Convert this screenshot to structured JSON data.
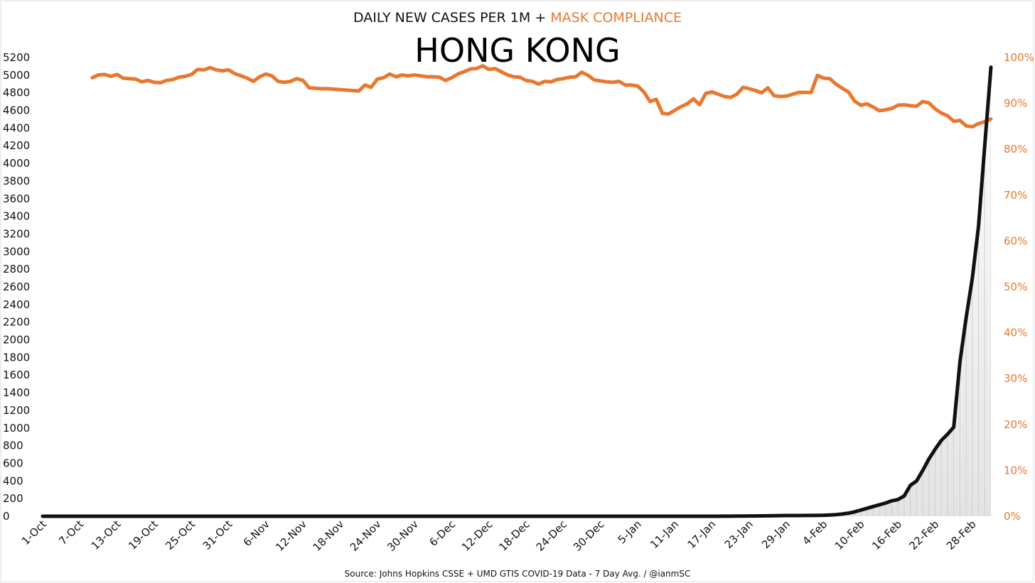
{
  "chart_data": {
    "type": "line",
    "title_prefix": "DAILY NEW CASES PER 1M + ",
    "title_highlight": "MASK COMPLIANCE",
    "title": "HONG KONG",
    "source": "Source: Johns Hopkins CSSE + UMD GTIS COVID-19 Data - 7 Day Avg. / @ianmSC",
    "colors": {
      "cases": "#111111",
      "mask": "#e8782e",
      "area_top": "#ffffff",
      "area_bottom": "#e4e4e4"
    },
    "x_tick_labels": [
      "1-Oct",
      "7-Oct",
      "13-Oct",
      "19-Oct",
      "25-Oct",
      "31-Oct",
      "6-Nov",
      "12-Nov",
      "18-Nov",
      "24-Nov",
      "30-Nov",
      "6-Dec",
      "12-Dec",
      "18-Dec",
      "24-Dec",
      "30-Dec",
      "5-Jan",
      "11-Jan",
      "17-Jan",
      "23-Jan",
      "29-Jan",
      "4-Feb",
      "10-Feb",
      "16-Feb",
      "22-Feb",
      "28-Feb"
    ],
    "x_tick_every_days": 6,
    "num_days": 154,
    "y_left": {
      "min": 0,
      "max": 5200,
      "step": 200
    },
    "y_right": {
      "min": 0,
      "max": 100,
      "step": 10,
      "suffix": "%"
    },
    "series": [
      {
        "name": "DAILY NEW CASES PER 1M",
        "axis": "left",
        "start_day": 0,
        "values": [
          0,
          0,
          0,
          0,
          0,
          0,
          0,
          0,
          0,
          0,
          0,
          0,
          0,
          0,
          0,
          0,
          0,
          0,
          0,
          0,
          0,
          0,
          0,
          0,
          0,
          0,
          0,
          0,
          0,
          0,
          0,
          0,
          0,
          0,
          0,
          0,
          0,
          0,
          0,
          0,
          0,
          0,
          0,
          0,
          0,
          0,
          0,
          0,
          0,
          0,
          0,
          0,
          0,
          0,
          0,
          0,
          0,
          0,
          0,
          0,
          0,
          0,
          0,
          0,
          0,
          0,
          0,
          0,
          0,
          0,
          0,
          0,
          0,
          0,
          0,
          0,
          0,
          0,
          0,
          0,
          0,
          0,
          0,
          0,
          0,
          0,
          0,
          0,
          0,
          0,
          0,
          0,
          0,
          0,
          0,
          0,
          0,
          0,
          0,
          0,
          0,
          0,
          0,
          0,
          0,
          0,
          0,
          0,
          0,
          0,
          1,
          1,
          2,
          2,
          3,
          3,
          4,
          5,
          6,
          7,
          8,
          8,
          8,
          9,
          9,
          10,
          11,
          14,
          18,
          25,
          35,
          50,
          70,
          90,
          110,
          130,
          150,
          175,
          190,
          230,
          350,
          400,
          520,
          650,
          760,
          860,
          930,
          1010,
          1750,
          2250,
          2700,
          3290,
          4200,
          5090
        ]
      },
      {
        "name": "MASK COMPLIANCE",
        "axis": "right",
        "start_day": 8,
        "values": [
          95.6,
          96.2,
          96.3,
          95.9,
          96.3,
          95.5,
          95.4,
          95.3,
          94.7,
          95.0,
          94.6,
          94.5,
          95.0,
          95.2,
          95.7,
          95.9,
          96.3,
          97.4,
          97.3,
          97.8,
          97.3,
          97.1,
          97.3,
          96.5,
          96.0,
          95.5,
          94.8,
          95.8,
          96.4,
          96.0,
          94.8,
          94.6,
          94.8,
          95.4,
          95.0,
          93.4,
          93.3,
          93.2,
          93.2,
          93.1,
          93.0,
          92.9,
          92.8,
          92.7,
          94.0,
          93.5,
          95.3,
          95.6,
          96.4,
          95.8,
          96.2,
          96.0,
          96.2,
          96.0,
          95.8,
          95.8,
          95.7,
          95.0,
          95.6,
          96.4,
          96.9,
          97.5,
          97.6,
          98.2,
          97.4,
          97.6,
          96.9,
          96.2,
          95.8,
          95.7,
          95.0,
          94.8,
          94.2,
          94.8,
          94.7,
          95.2,
          95.4,
          95.7,
          95.8,
          96.8,
          96.1,
          95.1,
          94.9,
          94.7,
          94.6,
          94.8,
          94.0,
          94.0,
          93.8,
          92.5,
          90.4,
          90.9,
          87.8,
          87.7,
          88.5,
          89.3,
          89.9,
          91.0,
          89.7,
          92.2,
          92.5,
          92.0,
          91.5,
          91.3,
          92.0,
          93.5,
          93.2,
          92.8,
          92.3,
          93.4,
          91.7,
          91.5,
          91.6,
          92.0,
          92.4,
          92.4,
          92.4,
          96.1,
          95.5,
          95.4,
          94.2,
          93.3,
          92.5,
          90.5,
          89.6,
          89.9,
          89.2,
          88.4,
          88.6,
          88.9,
          89.6,
          89.7,
          89.5,
          89.4,
          90.4,
          90.1,
          88.8,
          87.9,
          87.3,
          86.1,
          86.3,
          85.1,
          84.9,
          85.6,
          86.0,
          86.6
        ]
      }
    ]
  }
}
